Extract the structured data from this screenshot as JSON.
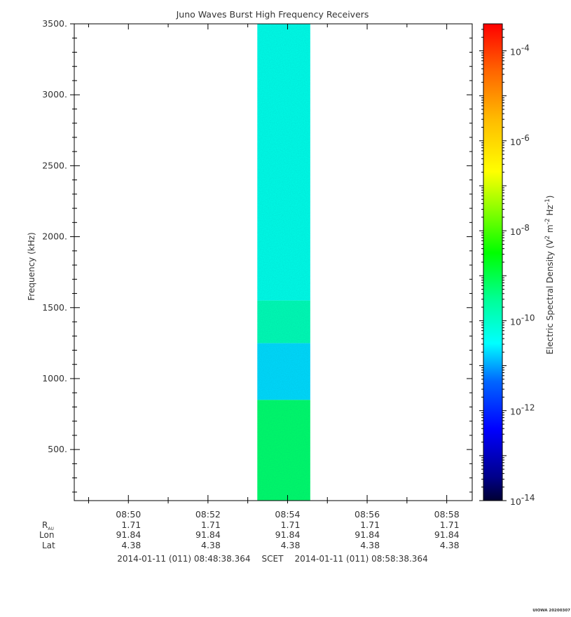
{
  "chart_data": {
    "type": "heatmap",
    "title": "Juno Waves Burst High Frequency Receivers",
    "ylabel": "Frequency (kHz)",
    "y_ticks": [
      "500.",
      "1000.",
      "1500.",
      "2000.",
      "2500.",
      "3000.",
      "3500."
    ],
    "y_tick_values": [
      500,
      1000,
      1500,
      2000,
      2500,
      3000,
      3500
    ],
    "ylim": [
      140,
      3500
    ],
    "xlim_minutes": [
      0,
      10
    ],
    "x_ticks": [
      "08:50",
      "08:52",
      "08:54",
      "08:56",
      "08:58"
    ],
    "x_tick_offsets_min": [
      1.36,
      3.36,
      5.36,
      7.36,
      9.36
    ],
    "data_span_min": [
      4.6,
      5.93
    ],
    "data_color_bands": [
      {
        "from_khz": 140,
        "to_khz": 850,
        "log_value": -9.2
      },
      {
        "from_khz": 850,
        "to_khz": 1250,
        "log_value": -10.7
      },
      {
        "from_khz": 1250,
        "to_khz": 1550,
        "log_value": -9.8
      },
      {
        "from_khz": 1550,
        "to_khz": 3500,
        "log_value": -10.3
      }
    ],
    "colorbar": {
      "label_main": "Electric Spectral Density (V",
      "label_sup1": "2",
      "label_mid1": " m",
      "label_sup2": "-2",
      "label_mid2": " Hz",
      "label_sup3": "-1",
      "label_end": ")",
      "log_min": -14,
      "log_max": -3.4,
      "tick_logs": [
        -14,
        -12,
        -10,
        -8,
        -6,
        -4
      ],
      "tick_base": "10",
      "tick_exps": [
        "-14",
        "-12",
        "-10",
        "-8",
        "-6",
        "-4"
      ]
    },
    "ephemeris": {
      "row_labels": [
        "R",
        "Lon",
        "Lat"
      ],
      "r_subscript": "AU",
      "rows": [
        [
          "1.71",
          "1.71",
          "1.71",
          "1.71",
          "1.71"
        ],
        [
          "91.84",
          "91.84",
          "91.84",
          "91.84",
          "91.84"
        ],
        [
          "4.38",
          "4.38",
          "4.38",
          "4.38",
          "4.38"
        ]
      ]
    },
    "time_range": {
      "start": "2014-01-11 (011) 08:48:38.364",
      "mid": "SCET",
      "end": "2014-01-11 (011) 08:58:38.364"
    },
    "footer": "UIOWA 20200307"
  }
}
